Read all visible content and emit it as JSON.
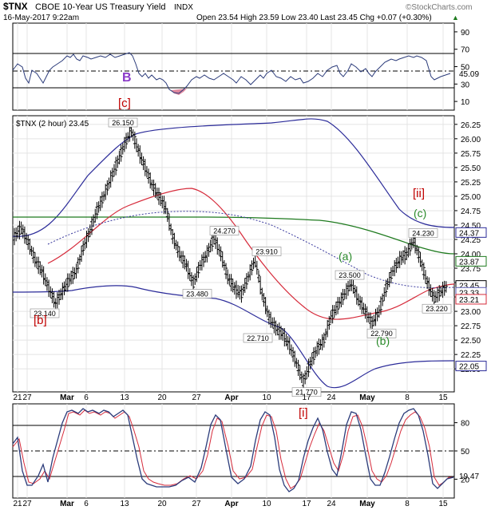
{
  "header": {
    "symbol": "$TNX",
    "name": "CBOE 10-Year US Treasury Yield",
    "exchange": "INDX",
    "watermark": "©StockCharts.com",
    "datetime": "16-May-2017 9:22am",
    "quote": "Open 23.54  High 23.59  Low 23.40  Last 23.45  Chg +0.07 (+0.30%)",
    "up_arrow": "▲"
  },
  "colors": {
    "accent_blue": "#1f1f9e",
    "red": "#d62b3b",
    "green": "#1e7a1e",
    "navy_line": "#2b2b99",
    "label_red": "#c00000",
    "label_green": "#2a8a2a",
    "label_purple": "#8a3ac8"
  },
  "panels": {
    "rsi_axis": [
      "90",
      "70",
      "50",
      "30",
      "10"
    ],
    "main_axis": [
      "26.25",
      "26.00",
      "25.75",
      "25.50",
      "25.25",
      "25.00",
      "24.75",
      "24.50",
      "24.25",
      "24.00",
      "23.75",
      "23.50",
      "23.25",
      "23.00",
      "22.75",
      "22.50",
      "22.25",
      "22.00"
    ],
    "stoch_axis": [
      "80",
      "50",
      "20"
    ],
    "x_labels": [
      "21",
      "27",
      "Mar",
      "6",
      "13",
      "20",
      "27",
      "Apr",
      "10",
      "17",
      "24",
      "May",
      "8",
      "15"
    ],
    "main_legend": "$TNX (2 hour) 23.45"
  },
  "chart_data": [
    {
      "type": "line",
      "name": "rsi_panel",
      "ylim": [
        0,
        100
      ],
      "guides": [
        70,
        50,
        30
      ],
      "last_value": 45.09,
      "last_label": "45.09",
      "annotation_labels": [
        "B",
        "[c]"
      ]
    },
    {
      "type": "line",
      "name": "price_panel",
      "title": "$TNX (2 hour) 23.45",
      "ylim": [
        21.6,
        26.4
      ],
      "x_categories": [
        "21",
        "27",
        "Mar",
        "6",
        "13",
        "20",
        "27",
        "Apr",
        "10",
        "17",
        "24",
        "May",
        "8",
        "15"
      ],
      "price_path": [
        [
          0,
          24.3
        ],
        [
          2,
          24.45
        ],
        [
          4,
          24.2
        ],
        [
          6,
          23.9
        ],
        [
          8,
          23.7
        ],
        [
          10,
          23.4
        ],
        [
          12,
          23.14
        ],
        [
          14,
          23.35
        ],
        [
          16,
          23.55
        ],
        [
          18,
          23.7
        ],
        [
          20,
          24.1
        ],
        [
          22,
          24.4
        ],
        [
          24,
          24.75
        ],
        [
          26,
          25.0
        ],
        [
          28,
          25.3
        ],
        [
          30,
          25.6
        ],
        [
          32,
          25.9
        ],
        [
          34,
          26.15
        ],
        [
          36,
          25.8
        ],
        [
          38,
          25.5
        ],
        [
          40,
          25.2
        ],
        [
          42,
          25.0
        ],
        [
          44,
          24.8
        ],
        [
          46,
          24.3
        ],
        [
          48,
          24.0
        ],
        [
          50,
          23.8
        ],
        [
          52,
          23.48
        ],
        [
          54,
          23.8
        ],
        [
          56,
          24.0
        ],
        [
          58,
          24.27
        ],
        [
          60,
          24.0
        ],
        [
          62,
          23.6
        ],
        [
          64,
          23.4
        ],
        [
          66,
          23.3
        ],
        [
          68,
          23.6
        ],
        [
          70,
          23.91
        ],
        [
          72,
          23.3
        ],
        [
          74,
          22.9
        ],
        [
          76,
          22.71
        ],
        [
          78,
          22.6
        ],
        [
          80,
          22.4
        ],
        [
          82,
          22.1
        ],
        [
          84,
          21.77
        ],
        [
          86,
          22.1
        ],
        [
          88,
          22.35
        ],
        [
          90,
          22.5
        ],
        [
          92,
          22.9
        ],
        [
          94,
          23.1
        ],
        [
          96,
          23.3
        ],
        [
          98,
          23.5
        ],
        [
          100,
          23.2
        ],
        [
          102,
          23.0
        ],
        [
          104,
          22.79
        ],
        [
          106,
          23.0
        ],
        [
          108,
          23.4
        ],
        [
          110,
          23.7
        ],
        [
          112,
          23.9
        ],
        [
          114,
          24.0
        ],
        [
          116,
          24.23
        ],
        [
          118,
          23.9
        ],
        [
          120,
          23.5
        ],
        [
          122,
          23.22
        ],
        [
          124,
          23.35
        ],
        [
          126,
          23.45
        ]
      ],
      "annotations": [
        {
          "label": "26.150",
          "value": 26.15
        },
        {
          "label": "24.270",
          "value": 24.27
        },
        {
          "label": "23.910",
          "value": 23.91
        },
        {
          "label": "23.480",
          "value": 23.48
        },
        {
          "label": "23.140",
          "value": 23.14
        },
        {
          "label": "22.710",
          "value": 22.71
        },
        {
          "label": "21.770",
          "value": 21.77
        },
        {
          "label": "23.500",
          "value": 23.5
        },
        {
          "label": "22.790",
          "value": 22.79
        },
        {
          "label": "24.230",
          "value": 24.23
        },
        {
          "label": "23.220",
          "value": 23.22
        }
      ],
      "wave_labels": [
        "[b]",
        "[ii]",
        "(c)",
        "(a)",
        "(b)"
      ],
      "right_labels": [
        {
          "label": "24.37",
          "value": 24.37,
          "color": "#2b2b99"
        },
        {
          "label": "23.87",
          "value": 23.87,
          "color": "#1e7a1e"
        },
        {
          "label": "23.45",
          "value": 23.45,
          "color": "#000000"
        },
        {
          "label": "23.33",
          "value": 23.33,
          "color": "#5a5ab0"
        },
        {
          "label": "23.21",
          "value": 23.21,
          "color": "#d62b3b"
        },
        {
          "label": "22.05",
          "value": 22.05,
          "color": "#2b2b99"
        }
      ]
    },
    {
      "type": "line",
      "name": "stochastic_panel",
      "ylim": [
        0,
        100
      ],
      "guides": [
        80,
        50,
        20
      ],
      "last_value": 19.47,
      "last_label": "19.47",
      "annotation_labels": [
        "[i]"
      ]
    }
  ]
}
